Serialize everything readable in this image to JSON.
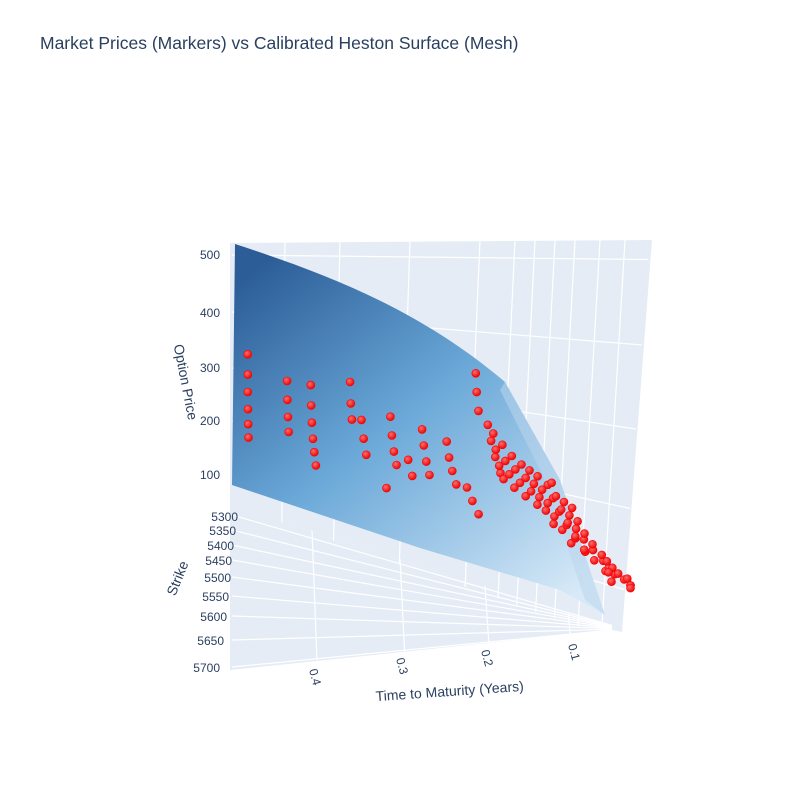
{
  "chart_data": {
    "type": "scatter",
    "title": "Market Prices (Markers) vs Calibrated Heston Surface (Mesh)",
    "axes": {
      "x": {
        "label": "Time to Maturity (Years)",
        "ticks": [
          "0.4",
          "0.3",
          "0.2",
          "0.1"
        ],
        "range": [
          0.48,
          0.05
        ]
      },
      "y": {
        "label": "Strike",
        "ticks": [
          "5300",
          "5350",
          "5400",
          "5450",
          "5500",
          "5550",
          "5600",
          "5650",
          "5700"
        ],
        "range": [
          5280,
          5700
        ]
      },
      "z": {
        "label": "Option Price",
        "ticks": [
          "500",
          "400",
          "300",
          "200",
          "100"
        ],
        "range": [
          60,
          530
        ]
      }
    },
    "series": [
      {
        "trace": "markers",
        "color": "#ff0000",
        "x": [
          0.46,
          0.46,
          0.46,
          0.46,
          0.46,
          0.46,
          0.41,
          0.41,
          0.41,
          0.41,
          0.38,
          0.38,
          0.38,
          0.38,
          0.38,
          0.38,
          0.33,
          0.33,
          0.33,
          0.32,
          0.32,
          0.32,
          0.3,
          0.28,
          0.28,
          0.28,
          0.28,
          0.27,
          0.27,
          0.24,
          0.24,
          0.24,
          0.24,
          0.21,
          0.21,
          0.21,
          0.21,
          0.2,
          0.2,
          0.2,
          0.17,
          0.17,
          0.17,
          0.16,
          0.16,
          0.16,
          0.16,
          0.15,
          0.15,
          0.15,
          0.15,
          0.14,
          0.14,
          0.14,
          0.14,
          0.13,
          0.13,
          0.13,
          0.13,
          0.12,
          0.12,
          0.12,
          0.12,
          0.11,
          0.11,
          0.11,
          0.11,
          0.11,
          0.1,
          0.1,
          0.1,
          0.1,
          0.1,
          0.1,
          0.09,
          0.09,
          0.09,
          0.09,
          0.09,
          0.09,
          0.08,
          0.08,
          0.08,
          0.08,
          0.08,
          0.08,
          0.08,
          0.08,
          0.07,
          0.07,
          0.07,
          0.07,
          0.07,
          0.07,
          0.07,
          0.07,
          0.06,
          0.06,
          0.06,
          0.06,
          0.06,
          0.06,
          0.06,
          0.06,
          0.06,
          0.06,
          0.08,
          0.08,
          0.06,
          0.06,
          0.06
        ],
        "y": [
          5300,
          5330,
          5360,
          5400,
          5440,
          5480,
          5320,
          5360,
          5400,
          5440,
          5320,
          5360,
          5400,
          5440,
          5480,
          5520,
          5320,
          5360,
          5400,
          5440,
          5480,
          5520,
          5560,
          5360,
          5400,
          5440,
          5480,
          5520,
          5560,
          5360,
          5400,
          5440,
          5480,
          5380,
          5420,
          5460,
          5500,
          5520,
          5560,
          5600,
          5300,
          5340,
          5380,
          5400,
          5440,
          5480,
          5520,
          5360,
          5400,
          5440,
          5480,
          5380,
          5420,
          5460,
          5500,
          5400,
          5440,
          5480,
          5520,
          5420,
          5460,
          5500,
          5540,
          5420,
          5460,
          5500,
          5540,
          5580,
          5420,
          5460,
          5500,
          5540,
          5580,
          5620,
          5440,
          5480,
          5520,
          5560,
          5600,
          5640,
          5400,
          5440,
          5480,
          5520,
          5560,
          5600,
          5640,
          5680,
          5440,
          5480,
          5520,
          5560,
          5600,
          5640,
          5660,
          5680,
          5440,
          5480,
          5520,
          5560,
          5600,
          5620,
          5640,
          5660,
          5680,
          5700,
          5690,
          5700,
          5690,
          5700,
          5700
        ],
        "z": [
          335,
          305,
          280,
          258,
          240,
          225,
          295,
          270,
          248,
          230,
          290,
          262,
          240,
          220,
          205,
          190,
          300,
          270,
          250,
          260,
          235,
          215,
          165,
          250,
          225,
          205,
          190,
          210,
          190,
          230,
          210,
          190,
          175,
          215,
          195,
          180,
          165,
          165,
          150,
          135,
          325,
          300,
          275,
          255,
          235,
          215,
          195,
          230,
          210,
          190,
          175,
          215,
          195,
          180,
          165,
          200,
          185,
          170,
          155,
          190,
          175,
          160,
          145,
          180,
          165,
          150,
          135,
          120,
          170,
          155,
          140,
          125,
          110,
          95,
          160,
          145,
          130,
          115,
          100,
          85,
          155,
          140,
          125,
          110,
          95,
          80,
          70,
          60,
          130,
          115,
          100,
          90,
          80,
          70,
          62,
          55,
          120,
          105,
          92,
          82,
          72,
          65,
          58,
          52,
          46,
          40,
          60,
          45,
          50,
          40,
          35
        ]
      }
    ],
    "surface": {
      "trace": "mesh",
      "colorscale": "Blues",
      "colors": [
        "#2c5d97",
        "#6aa8d8",
        "#d8eaf8"
      ]
    },
    "colors": {
      "axis_text": "#2a3f5f",
      "pane": "#e5ecf6",
      "grid": "#ffffff",
      "marker": "#ff0000"
    }
  }
}
